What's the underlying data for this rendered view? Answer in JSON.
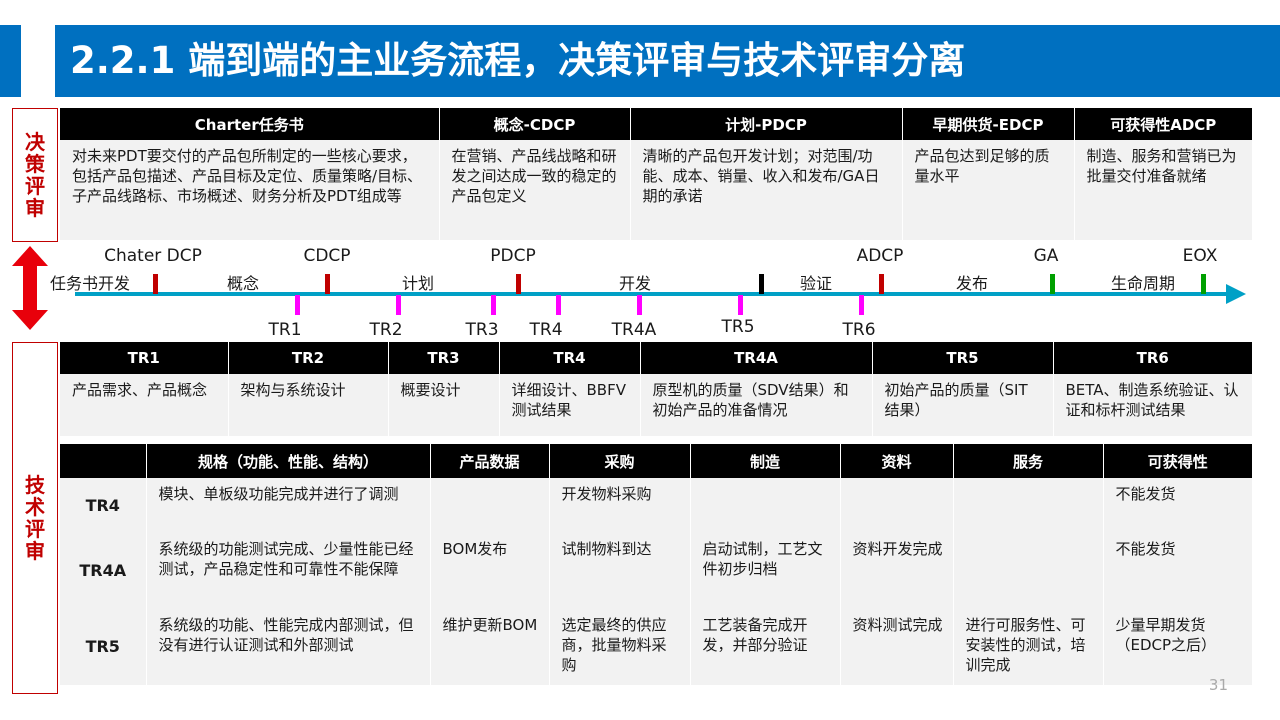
{
  "title": "2.2.1 端到端的主业务流程，决策评审与技术评审分离",
  "page_number": "31",
  "side_labels": {
    "decision": "决策评审",
    "tech": "技术评审"
  },
  "colors": {
    "title_bg": "#0070c0",
    "accent_red": "#c00000",
    "timeline": "#00a0c6",
    "tr_marker": "#ff00ff",
    "dcp_marker": "#c00000",
    "ga_marker": "#00a000"
  },
  "decision_table": {
    "headers": [
      "Charter任务书",
      "概念-CDCP",
      "计划-PDCP",
      "早期供货-EDCP",
      "可获得性ADCP"
    ],
    "cells": [
      "对未来PDT要交付的产品包所制定的一些核心要求，包括产品包描述、产品目标及定位、质量策略/目标、子产品线路标、市场概述、财务分析及PDT组成等",
      "在营销、产品线战略和研发之间达成一致的稳定的产品包定义",
      "清晰的产品包开发计划；对范围/功能、成本、销量、收入和发布/GA日期的承诺",
      "产品包达到足够的质量水平",
      "制造、服务和营销已为批量交付准备就绪"
    ]
  },
  "timeline": {
    "top_labels": [
      "Chater DCP",
      "CDCP",
      "PDCP",
      "ADCP",
      "GA",
      "EOX"
    ],
    "phases": [
      "任务书开发",
      "概念",
      "计划",
      "开发",
      "验证",
      "发布",
      "生命周期"
    ],
    "tr_labels": [
      "TR1",
      "TR2",
      "TR3",
      "TR4",
      "TR4A",
      "TR5",
      "TR6"
    ]
  },
  "tr_table": {
    "headers": [
      "TR1",
      "TR2",
      "TR3",
      "TR4",
      "TR4A",
      "TR5",
      "TR6"
    ],
    "cells": [
      "产品需求、产品概念",
      "架构与系统设计",
      "概要设计",
      "详细设计、BBFV测试结果",
      "原型机的质量（SDV结果）和初始产品的准备情况",
      "初始产品的质量（SIT结果）",
      "BETA、制造系统验证、认证和标杆测试结果"
    ]
  },
  "detail_table": {
    "headers": [
      "",
      "规格（功能、性能、结构）",
      "产品数据",
      "采购",
      "制造",
      "资料",
      "服务",
      "可获得性"
    ],
    "rows": [
      {
        "name": "TR4",
        "cells": [
          "模块、单板级功能完成并进行了调测",
          "",
          "开发物料采购",
          "",
          "",
          "",
          "不能发货"
        ]
      },
      {
        "name": "TR4A",
        "cells": [
          "系统级的功能测试完成、少量性能已经测试，产品稳定性和可靠性不能保障",
          "BOM发布",
          "试制物料到达",
          "启动试制，工艺文件初步归档",
          "资料开发完成",
          "",
          "不能发货"
        ]
      },
      {
        "name": "TR5",
        "cells": [
          "系统级的功能、性能完成内部测试，但没有进行认证测试和外部测试",
          "维护更新BOM",
          "选定最终的供应商，批量物料采购",
          "工艺装备完成开发，并部分验证",
          "资料测试完成",
          "进行可服务性、可安装性的测试，培训完成",
          "少量早期发货（EDCP之后）"
        ]
      }
    ]
  }
}
